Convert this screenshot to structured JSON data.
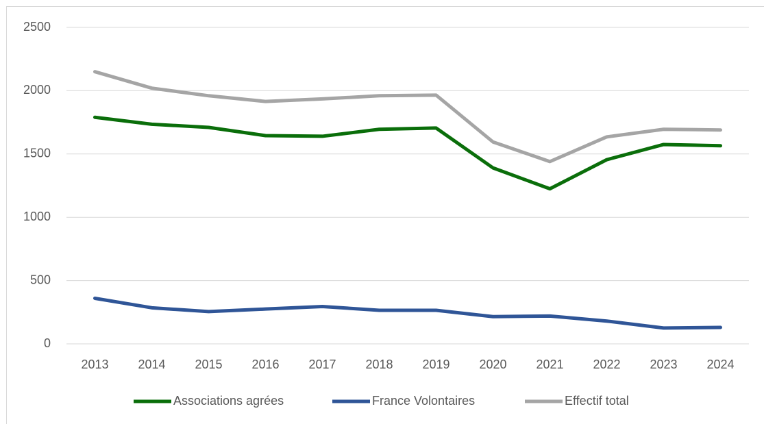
{
  "chart_data": {
    "type": "line",
    "categories": [
      "2013",
      "2014",
      "2015",
      "2016",
      "2017",
      "2018",
      "2019",
      "2020",
      "2021",
      "2022",
      "2023",
      "2024"
    ],
    "series": [
      {
        "name": "Associations agrées",
        "color": "#0a6e0a",
        "values": [
          1790,
          1735,
          1710,
          1645,
          1640,
          1695,
          1705,
          1390,
          1225,
          1455,
          1575,
          1565
        ]
      },
      {
        "name": "France Volontaires",
        "color": "#2f5597",
        "values": [
          360,
          285,
          255,
          275,
          295,
          265,
          265,
          215,
          220,
          180,
          125,
          130
        ]
      },
      {
        "name": "Effectif total",
        "color": "#a5a5a5",
        "values": [
          2150,
          2020,
          1960,
          1915,
          1935,
          1960,
          1965,
          1595,
          1440,
          1635,
          1695,
          1690
        ]
      }
    ],
    "ylim": [
      0,
      2500
    ],
    "yticks": [
      0,
      500,
      1000,
      1500,
      2000,
      2500
    ],
    "grid": true,
    "legend": "bottom"
  }
}
